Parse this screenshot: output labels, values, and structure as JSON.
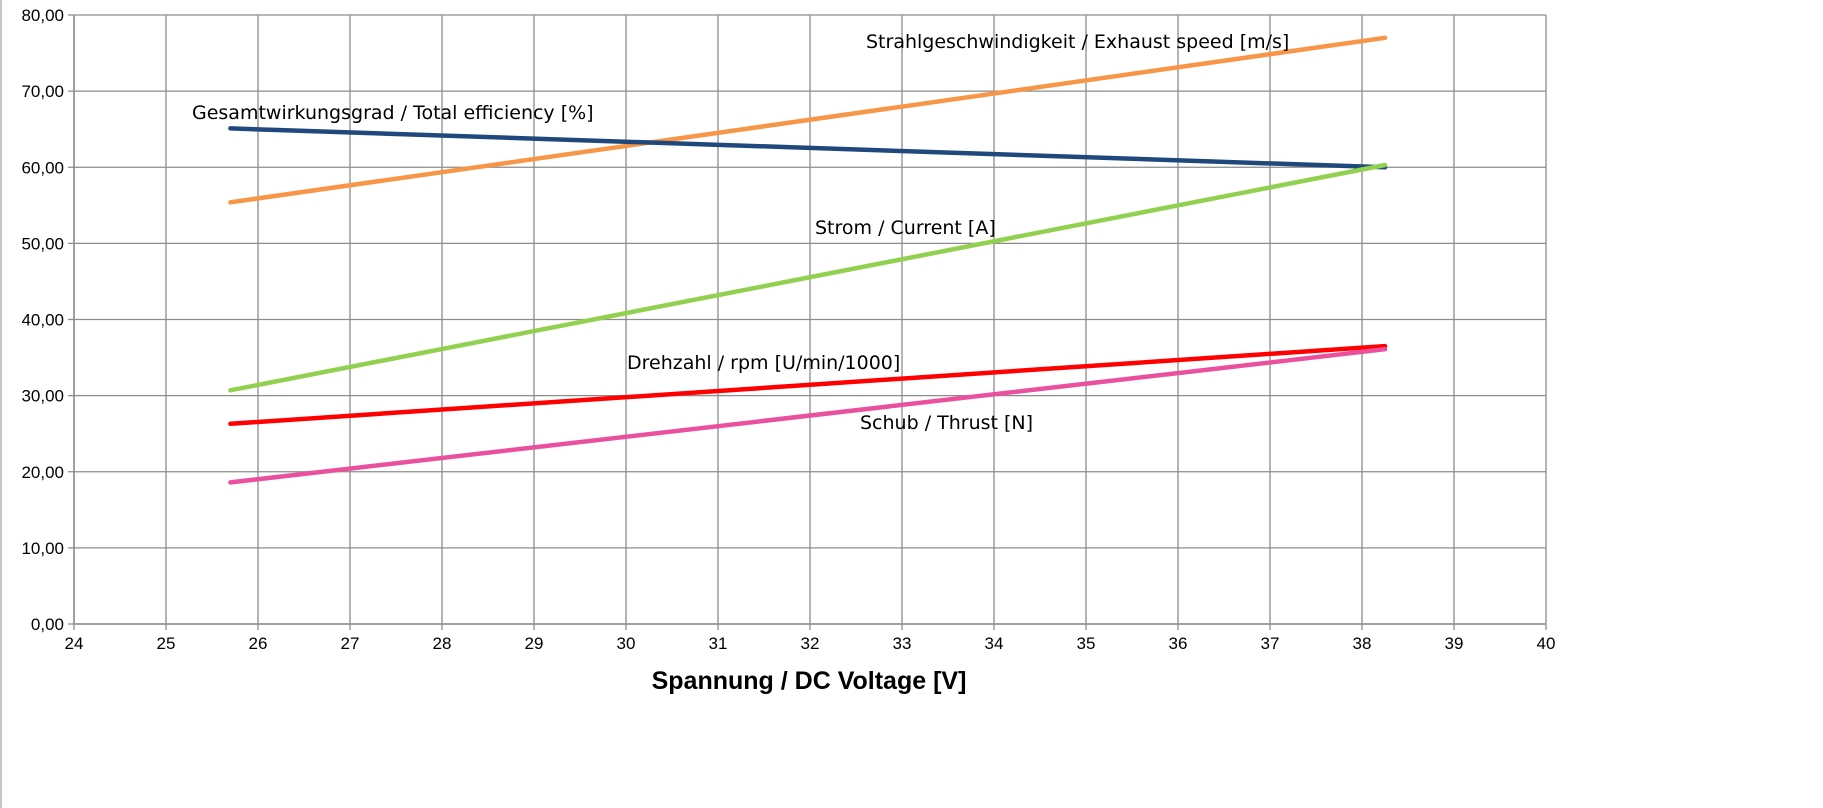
{
  "chart_data": {
    "type": "line",
    "xlabel": "Spannung / DC Voltage [V]",
    "ylabel": "",
    "xlim": [
      24,
      40
    ],
    "ylim": [
      0,
      80
    ],
    "x_ticks": [
      "24",
      "25",
      "26",
      "27",
      "28",
      "29",
      "30",
      "31",
      "32",
      "33",
      "34",
      "35",
      "36",
      "37",
      "38",
      "39",
      "40"
    ],
    "y_ticks": [
      "0,00",
      "10,00",
      "20,00",
      "30,00",
      "40,00",
      "50,00",
      "60,00",
      "70,00",
      "80,00"
    ],
    "grid": true,
    "legend": "none",
    "series": [
      {
        "name": "Strahlgeschwindigkeit / Exhaust speed [m/s]",
        "color": "#F79646",
        "x": [
          25.7,
          38.25
        ],
        "y": [
          55.4,
          77.0
        ]
      },
      {
        "name": "Gesamtwirkungsgrad / Total efficiency [%]",
        "color": "#1F497D",
        "x": [
          25.7,
          38.25
        ],
        "y": [
          65.1,
          60.0
        ]
      },
      {
        "name": "Strom / Current [A]",
        "color": "#92D050",
        "x": [
          25.7,
          38.25
        ],
        "y": [
          30.7,
          60.3
        ]
      },
      {
        "name": "Drehzahl / rpm [U/min/1000]",
        "color": "#FF0000",
        "x": [
          25.7,
          38.25
        ],
        "y": [
          26.3,
          36.5
        ]
      },
      {
        "name": "Schub / Thrust [N]",
        "color": "#E9519F",
        "x": [
          25.7,
          38.25
        ],
        "y": [
          18.6,
          36.1
        ]
      }
    ]
  }
}
